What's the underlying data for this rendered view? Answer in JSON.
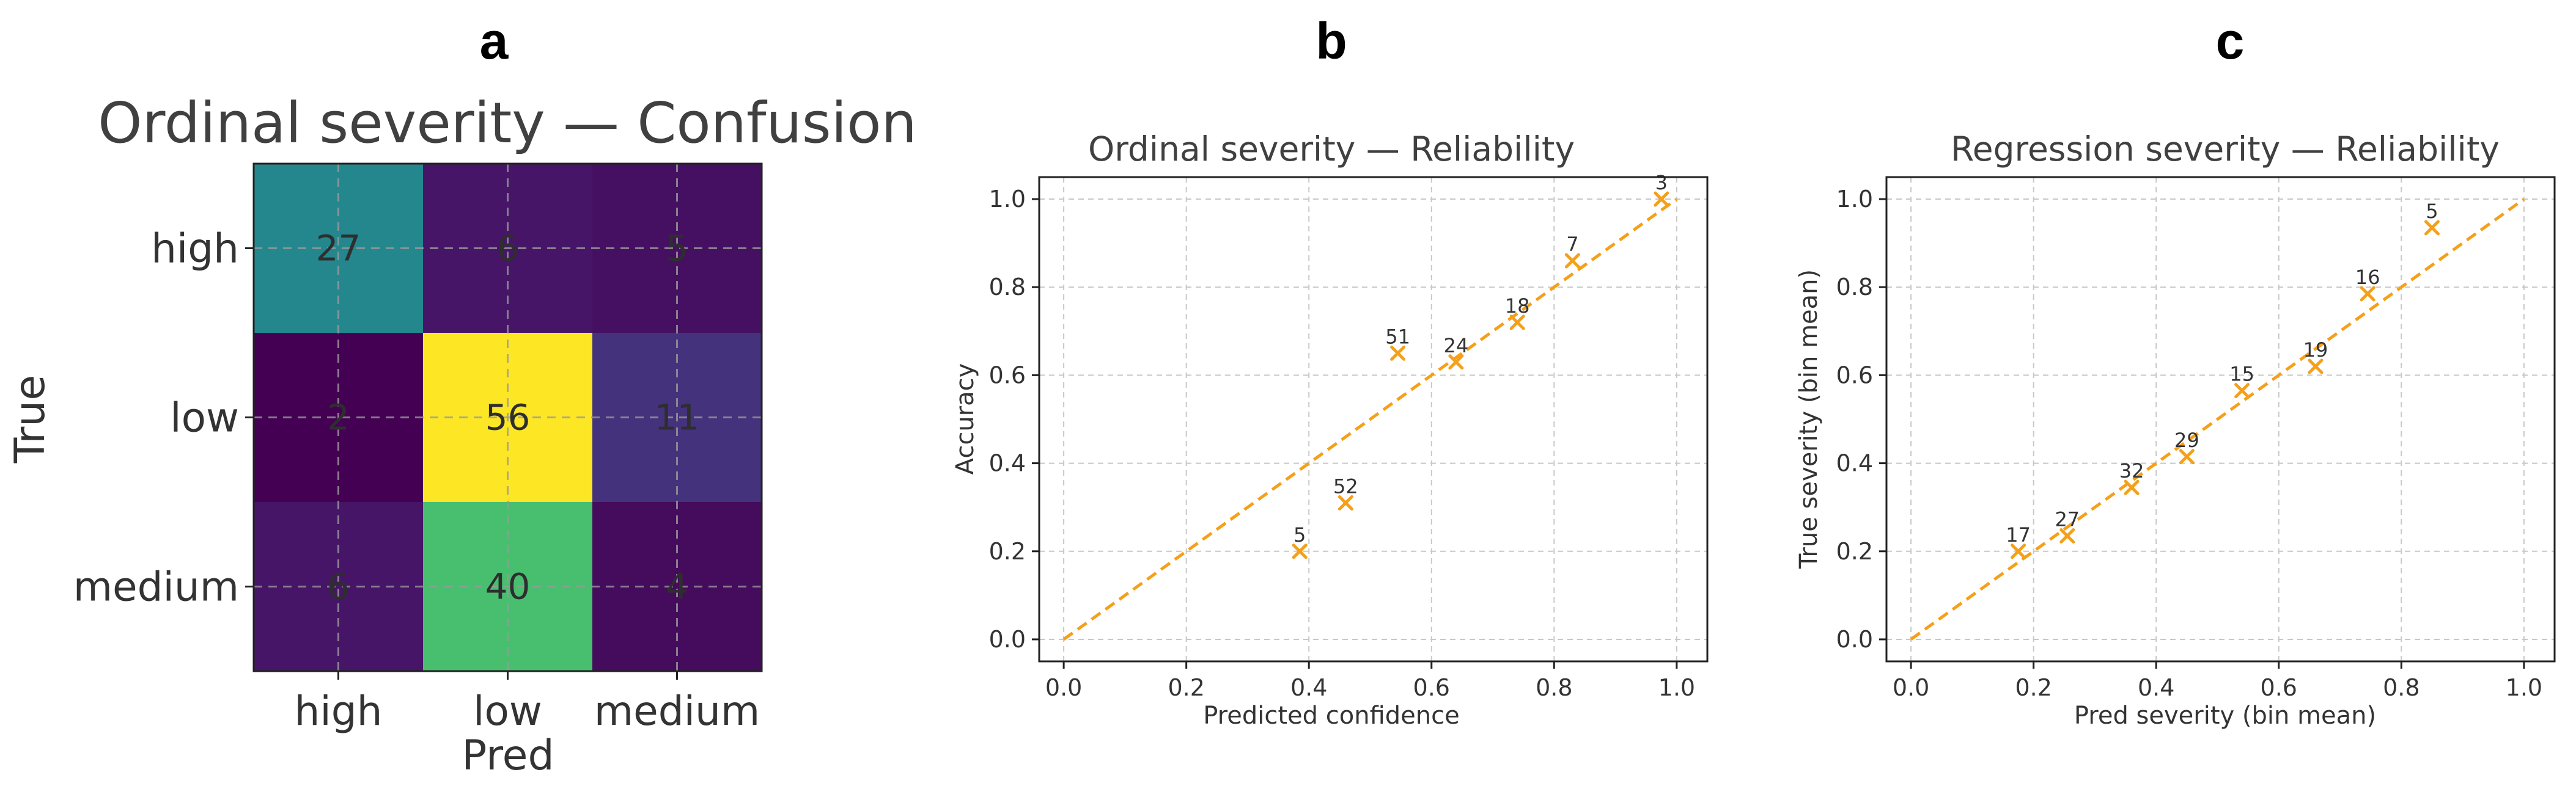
{
  "panels": {
    "a": {
      "letter": "a"
    },
    "b": {
      "letter": "b"
    },
    "c": {
      "letter": "c"
    }
  },
  "colors": {
    "marker": "#f5a01a",
    "diagonal": "#f5a01a",
    "colormap": "viridis"
  },
  "chart_data": [
    {
      "panel": "a",
      "type": "heatmap",
      "title": "Ordinal severity — Confusion",
      "xlabel": "Pred",
      "ylabel": "True",
      "x_categories": [
        "high",
        "low",
        "medium"
      ],
      "y_categories": [
        "high",
        "low",
        "medium"
      ],
      "values": [
        [
          27,
          6,
          5
        ],
        [
          2,
          56,
          11
        ],
        [
          6,
          40,
          4
        ]
      ],
      "color_range": [
        2,
        56
      ],
      "grid": true
    },
    {
      "panel": "b",
      "type": "scatter",
      "title": "Ordinal severity — Reliability",
      "xlabel": "Predicted confidence",
      "ylabel": "Accuracy",
      "xlim": [
        -0.04,
        1.05
      ],
      "ylim": [
        -0.05,
        1.05
      ],
      "xticks": [
        "0.0",
        "0.2",
        "0.4",
        "0.6",
        "0.8",
        "1.0"
      ],
      "yticks": [
        "0.0",
        "0.2",
        "0.4",
        "0.6",
        "0.8",
        "1.0"
      ],
      "grid": true,
      "diagonal": true,
      "points": [
        {
          "x": 0.385,
          "y": 0.2,
          "label": "5"
        },
        {
          "x": 0.46,
          "y": 0.31,
          "label": "52"
        },
        {
          "x": 0.545,
          "y": 0.65,
          "label": "51"
        },
        {
          "x": 0.64,
          "y": 0.63,
          "label": "24"
        },
        {
          "x": 0.74,
          "y": 0.72,
          "label": "18"
        },
        {
          "x": 0.83,
          "y": 0.86,
          "label": "7"
        },
        {
          "x": 0.975,
          "y": 1.0,
          "label": "3"
        }
      ]
    },
    {
      "panel": "c",
      "type": "scatter",
      "title": "Regression severity — Reliability",
      "xlabel": "Pred severity (bin mean)",
      "ylabel": "True severity (bin mean)",
      "xlim": [
        -0.04,
        1.05
      ],
      "ylim": [
        -0.05,
        1.05
      ],
      "xticks": [
        "0.0",
        "0.2",
        "0.4",
        "0.6",
        "0.8",
        "1.0"
      ],
      "yticks": [
        "0.0",
        "0.2",
        "0.4",
        "0.6",
        "0.8",
        "1.0"
      ],
      "grid": true,
      "diagonal": true,
      "points": [
        {
          "x": 0.175,
          "y": 0.2,
          "label": "17"
        },
        {
          "x": 0.255,
          "y": 0.235,
          "label": "27"
        },
        {
          "x": 0.36,
          "y": 0.345,
          "label": "32"
        },
        {
          "x": 0.45,
          "y": 0.415,
          "label": "29"
        },
        {
          "x": 0.54,
          "y": 0.565,
          "label": "15"
        },
        {
          "x": 0.66,
          "y": 0.62,
          "label": "19"
        },
        {
          "x": 0.745,
          "y": 0.785,
          "label": "16"
        },
        {
          "x": 0.85,
          "y": 0.935,
          "label": "5"
        }
      ]
    }
  ]
}
